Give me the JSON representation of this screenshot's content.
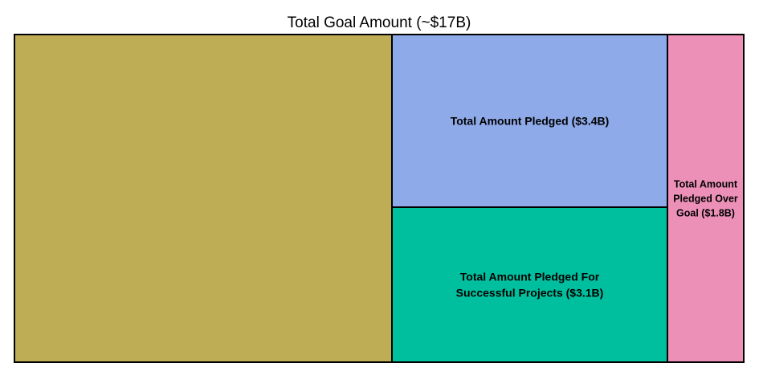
{
  "chart_data": {
    "type": "treemap",
    "title": "Total Goal Amount (~$17B)",
    "tiles": [
      {
        "id": "unfunded",
        "label": "",
        "value": 8.7,
        "color": "#BFAD55"
      },
      {
        "id": "pledged",
        "label": "Total Amount Pledged ($3.4B)",
        "value": 3.4,
        "color": "#8FAAE9"
      },
      {
        "id": "successful",
        "label": "Total Amount Pledged For Successful Projects ($3.1B)",
        "value": 3.1,
        "color": "#00BF9E"
      },
      {
        "id": "over-goal",
        "label": "Total Amount Pledged Over Goal ($1.8B)",
        "value": 1.8,
        "color": "#EC90B8"
      }
    ]
  }
}
